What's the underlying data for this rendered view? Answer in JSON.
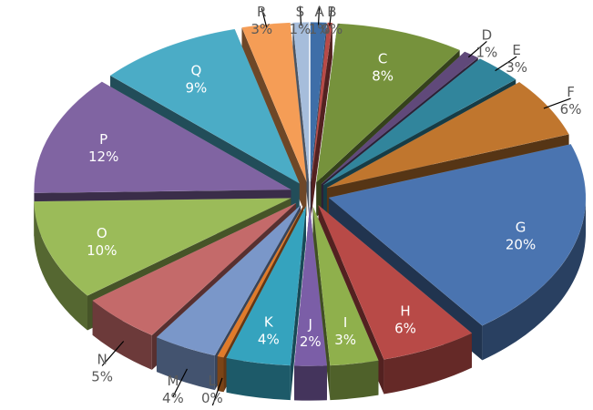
{
  "chart_data": {
    "type": "pie",
    "style": "3d-exploded",
    "legend": "none",
    "slices": [
      {
        "name": "A",
        "label": "1%",
        "value": 1,
        "color": "#3E6EA8"
      },
      {
        "name": "B",
        "label": "0%",
        "value": 0.3,
        "color": "#B84A47"
      },
      {
        "name": "C",
        "label": "8%",
        "value": 8,
        "color": "#76923C"
      },
      {
        "name": "D",
        "label": "1%",
        "value": 1,
        "color": "#60497A"
      },
      {
        "name": "E",
        "label": "3%",
        "value": 3,
        "color": "#31859C"
      },
      {
        "name": "F",
        "label": "6%",
        "value": 6,
        "color": "#C0762E"
      },
      {
        "name": "G",
        "label": "20%",
        "value": 20,
        "color": "#4A74B0"
      },
      {
        "name": "H",
        "label": "6%",
        "value": 6,
        "color": "#B84A47"
      },
      {
        "name": "I",
        "label": "3%",
        "value": 3,
        "color": "#8FB04C"
      },
      {
        "name": "J",
        "label": "2%",
        "value": 2,
        "color": "#7B5EA7"
      },
      {
        "name": "K",
        "label": "4%",
        "value": 4,
        "color": "#35A3BE"
      },
      {
        "name": "L",
        "label": "0%",
        "value": 0.4,
        "color": "#E07B2A"
      },
      {
        "name": "M",
        "label": "4%",
        "value": 4,
        "color": "#7A97C9"
      },
      {
        "name": "N",
        "label": "5%",
        "value": 5,
        "color": "#C46A6A"
      },
      {
        "name": "O",
        "label": "10%",
        "value": 10,
        "color": "#9BBB59"
      },
      {
        "name": "P",
        "label": "12%",
        "value": 12,
        "color": "#8064A2"
      },
      {
        "name": "Q",
        "label": "9%",
        "value": 9,
        "color": "#4BACC6"
      },
      {
        "name": "R",
        "label": "3%",
        "value": 3,
        "color": "#F59D56"
      },
      {
        "name": "S",
        "label": "1%",
        "value": 1,
        "color": "#A6BDDB"
      }
    ]
  }
}
